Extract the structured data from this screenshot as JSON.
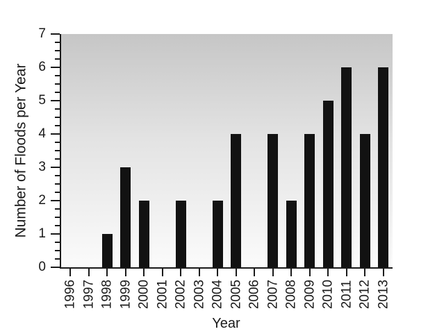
{
  "chart_data": {
    "type": "bar",
    "title": "",
    "categories": [
      "1996",
      "1997",
      "1998",
      "1999",
      "2000",
      "2001",
      "2002",
      "2003",
      "2004",
      "2005",
      "2006",
      "2007",
      "2008",
      "2009",
      "2010",
      "2011",
      "2012",
      "2013"
    ],
    "values": [
      0,
      0,
      1,
      3,
      2,
      0,
      2,
      0,
      2,
      4,
      0,
      4,
      2,
      4,
      5,
      6,
      4,
      6
    ],
    "xlabel": "Year",
    "ylabel": "Number of Floods per Year",
    "ylim": [
      0,
      7
    ],
    "yticks": [
      0,
      1,
      2,
      3,
      4,
      5,
      6,
      7
    ],
    "ytick_step": 1,
    "yminor_step": 0.25,
    "grid": false,
    "legend": null,
    "colors": {
      "bar": "#121212",
      "axis": "#1a1a1a",
      "text": "#1a1a1a",
      "plot_bg_top": "#c6c6c6",
      "plot_bg_mid": "#e3e3e3",
      "plot_bg_bottom": "#fbfbfb"
    }
  }
}
